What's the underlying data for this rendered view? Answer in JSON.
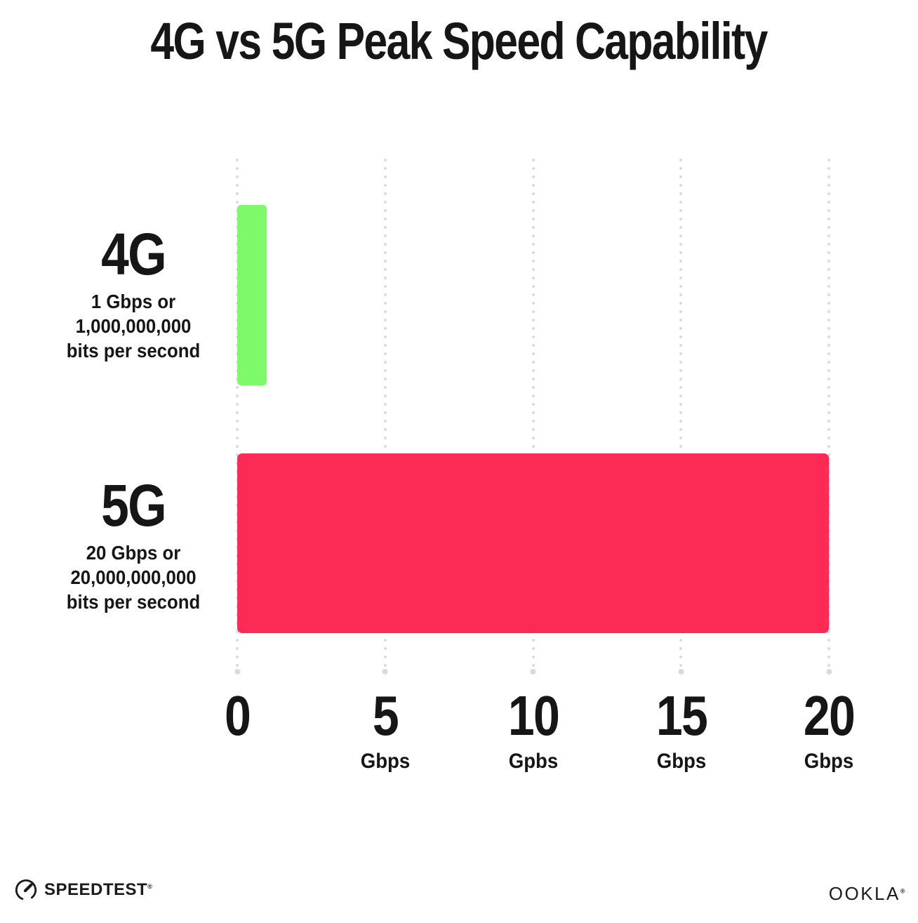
{
  "title": "4G vs 5G Peak Speed Capability",
  "chart_data": {
    "type": "bar",
    "orientation": "horizontal",
    "title": "4G vs 5G Peak Speed Capability",
    "categories": [
      "4G",
      "5G"
    ],
    "values": [
      1,
      20
    ],
    "value_unit": "Gbps",
    "category_descriptions": [
      "1 Gbps or 1,000,000,000 bits per second",
      "20 Gbps or 20,000,000,000 bits per second"
    ],
    "bar_colors": [
      "#7EF969",
      "#FB2B55"
    ],
    "xlim": [
      0,
      20
    ],
    "x_ticks": [
      {
        "value": "0",
        "unit": ""
      },
      {
        "value": "5",
        "unit": "Gbps"
      },
      {
        "value": "10",
        "unit": "Gpbs"
      },
      {
        "value": "15",
        "unit": "Gbps"
      },
      {
        "value": "20",
        "unit": "Gbps"
      }
    ],
    "grid": "dotted-vertical",
    "legend": "none"
  },
  "rows": [
    {
      "label": "4G",
      "desc": [
        "1 Gbps or",
        "1,000,000,000",
        "bits per second"
      ]
    },
    {
      "label": "5G",
      "desc": [
        "20 Gbps or",
        "20,000,000,000",
        "bits per second"
      ]
    }
  ],
  "footer": {
    "speedtest_label": "SPEEDTEST",
    "speedtest_mark": "®",
    "speedtest_icon": "speedometer-gauge-icon",
    "ookla_label": "OOKLA",
    "ookla_mark": "®"
  },
  "colors": {
    "bar_4g": "#7EF969",
    "bar_5g": "#FB2B55",
    "gridline": "#DCDCE8",
    "text": "#161616",
    "background": "#FFFFFF"
  }
}
